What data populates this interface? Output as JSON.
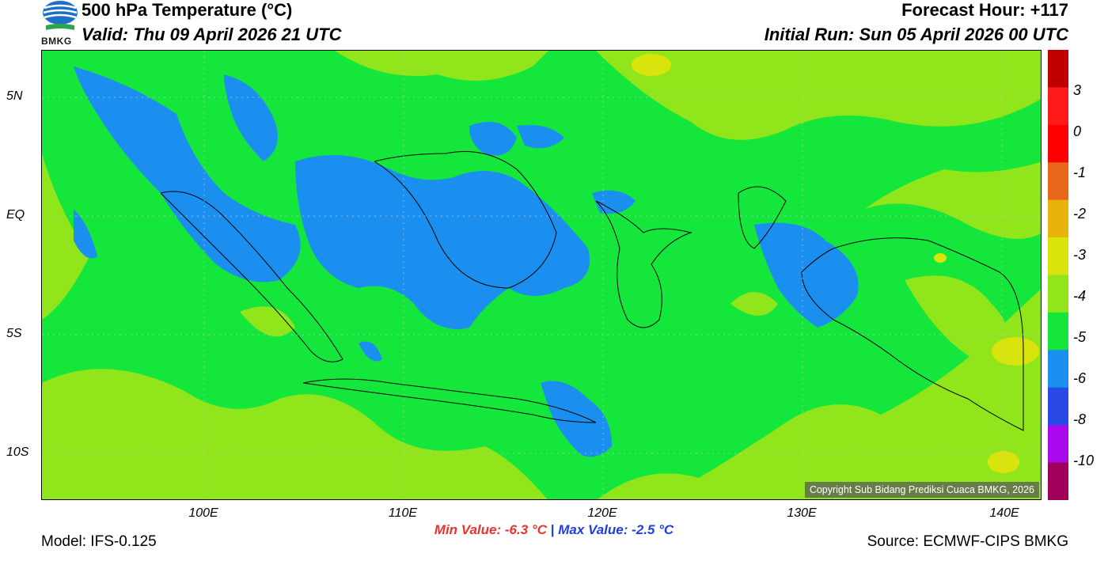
{
  "header": {
    "title": "500 hPa Temperature (°C)",
    "valid": "Valid: Thu 09 April 2026 21 UTC",
    "forecast_hour": "Forecast Hour: +117",
    "initial_run": "Initial Run: Sun 05 April 2026 00 UTC",
    "logo_text": "BMKG"
  },
  "map": {
    "lat_labels": [
      "5N",
      "EQ",
      "5S",
      "10S"
    ],
    "lon_labels": [
      "100E",
      "110E",
      "120E",
      "130E",
      "140E"
    ],
    "copyright": "Copyright Sub Bidang Prediksi Cuaca BMKG, 2026"
  },
  "colorbar": {
    "labels": [
      "3",
      "0",
      "-1",
      "-2",
      "-3",
      "-4",
      "-5",
      "-6",
      "-8",
      "-10"
    ],
    "colors": [
      "#c00000",
      "#ff1a1a",
      "#ff0000",
      "#e8661a",
      "#e8b40c",
      "#d8e40c",
      "#90e61a",
      "#14e63c",
      "#1a8ff0",
      "#2849e6",
      "#a80aed",
      "#a0005a"
    ]
  },
  "stats": {
    "min": "Min Value: -6.3 °C",
    "separator": "|",
    "max": "Max Value: -2.5 °C"
  },
  "footer": {
    "model": "Model: IFS-0.125",
    "source": "Source: ECMWF-CIPS BMKG"
  }
}
